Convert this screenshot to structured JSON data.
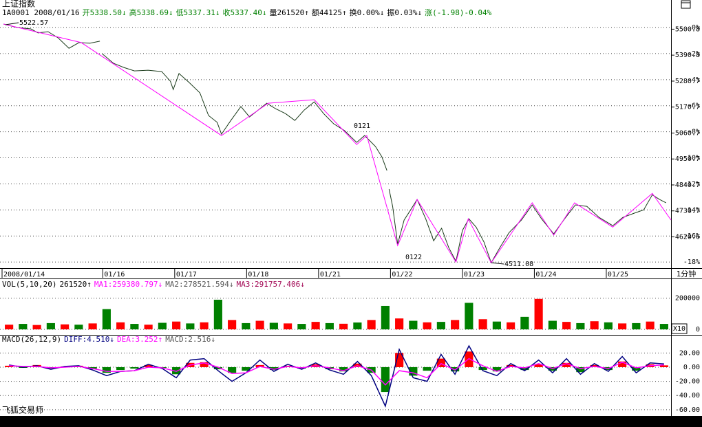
{
  "chart_data": [
    {
      "type": "line",
      "title": "上证指数",
      "header": [
        {
          "text": "1A0001 2008/01/16",
          "color": "#000000"
        },
        {
          "text": "开5338.50↓",
          "color": "#008000"
        },
        {
          "text": "高5338.69↓",
          "color": "#008000"
        },
        {
          "text": "低5337.31↓",
          "color": "#008000"
        },
        {
          "text": "收5337.40↓",
          "color": "#008000"
        },
        {
          "text": "量261520↑",
          "color": "#000000"
        },
        {
          "text": "额44125↑",
          "color": "#000000"
        },
        {
          "text": "换0.00%↓",
          "color": "#000000"
        },
        {
          "text": "振0.03%↓",
          "color": "#000000"
        },
        {
          "text": "涨(-1.98)-0.04%",
          "color": "#008000"
        }
      ],
      "x": [
        -0.38,
        -0.19,
        0.0,
        0.1,
        0.24,
        0.38,
        0.53,
        0.67,
        0.82,
        0.96,
        null,
        0.99,
        1.15,
        1.29,
        1.44,
        1.63,
        1.82,
        1.94,
        1.98,
        2.06,
        2.2,
        2.35,
        2.47,
        2.59,
        2.65,
        2.78,
        2.92,
        3.04,
        3.16,
        3.28,
        3.4,
        3.54,
        3.67,
        3.8,
        3.94,
        4.07,
        4.21,
        4.36,
        4.53,
        4.64,
        4.79,
        4.88,
        4.95,
        null,
        4.98,
        5.03,
        5.1,
        5.19,
        5.28,
        5.37,
        5.49,
        5.6,
        5.71,
        5.81,
        5.91,
        6.0,
        6.09,
        6.19,
        6.3,
        6.4,
        6.52,
        6.65,
        6.82,
        6.97,
        7.1,
        7.27,
        7.42,
        7.57,
        7.73,
        7.9,
        8.09,
        8.23,
        8.39,
        8.52,
        8.64,
        8.74,
        8.83
      ],
      "values": [
        5522.57,
        5508,
        5502,
        5485,
        5490,
        5464,
        5420,
        5444,
        5441,
        5450,
        null,
        5397,
        5356,
        5339,
        5324,
        5327,
        5321,
        5280,
        5245,
        5313,
        5275,
        5231,
        5135,
        5106,
        5056,
        5114,
        5173,
        5129,
        5158,
        5187,
        5164,
        5143,
        5114,
        5158,
        5193,
        5143,
        5100,
        5071,
        5021,
        5050,
        5004,
        4960,
        4902,
        null,
        4823,
        4750,
        4590,
        4692,
        4735,
        4779,
        4697,
        4604,
        4657,
        4575,
        4517,
        4648,
        4697,
        4662,
        4598,
        4511.08,
        4575,
        4639,
        4692,
        4756,
        4697,
        4633,
        4697,
        4756,
        4750,
        4703,
        4668,
        4703,
        4721,
        4735,
        4799,
        4779,
        4765
      ],
      "color": "#1a3a1a",
      "zigzag": {
        "color": "#ff00ff",
        "x": [
          -0.38,
          0.7,
          2.65,
          3.3,
          3.94,
          4.53,
          4.67,
          5.1,
          5.37,
          5.91,
          6.08,
          6.4,
          6.97,
          7.27,
          7.56,
          8.09,
          8.64,
          8.9
        ],
        "values": [
          5522.57,
          5444,
          5050,
          5187,
          5202,
          5012,
          5050,
          4584,
          4779,
          4514,
          4697,
          4511.08,
          4765,
          4628,
          4765,
          4662,
          4805,
          4692
        ]
      },
      "annotations": [
        {
          "text": "5522.57"
        },
        {
          "text": "0121"
        },
        {
          "text": "0122"
        },
        {
          "text": "4511.08"
        }
      ],
      "xlim": [
        -0.4,
        8.9
      ],
      "xticks": [
        {
          "value": -0.4,
          "label": "2008/01/14"
        },
        {
          "value": 1,
          "label": "01/16"
        },
        {
          "value": 2,
          "label": "01/17"
        },
        {
          "value": 3,
          "label": "01/18"
        },
        {
          "value": 4,
          "label": "01/21"
        },
        {
          "value": 5,
          "label": "01/22"
        },
        {
          "value": 6,
          "label": "01/23"
        },
        {
          "value": 7,
          "label": "01/24"
        },
        {
          "value": 8,
          "label": "01/25"
        }
      ],
      "period": "1分钟",
      "ylim": [
        4488,
        5537
      ],
      "yticks": [
        5500.8,
        5390.8,
        5280.7,
        5170.7,
        5060.7,
        4950.7,
        4840.7,
        4730.7,
        4620.6
      ],
      "y2lim": [
        -18.47,
        0.53
      ],
      "y2ticks": [
        {
          "value": 0,
          "label": "0%"
        },
        {
          "value": -2,
          "label": "-2%"
        },
        {
          "value": -4,
          "label": "-4%"
        },
        {
          "value": -6,
          "label": "-6%"
        },
        {
          "value": -8,
          "label": "-8%"
        },
        {
          "value": -10,
          "label": "-10%"
        },
        {
          "value": -12,
          "label": "-12%"
        },
        {
          "value": -14,
          "label": "-14%"
        },
        {
          "value": -16,
          "label": "-16%"
        },
        {
          "value": -18,
          "label": "-18%"
        }
      ],
      "grid": true
    },
    {
      "type": "bar",
      "header": [
        {
          "text": "VOL(5,10,20)",
          "color": "#000000"
        },
        {
          "text": "261520↑",
          "color": "#000000"
        },
        {
          "text": "MA1:259380.797↓",
          "color": "#ff00ff"
        },
        {
          "text": "MA2:278521.594↓",
          "color": "#555555"
        },
        {
          "text": "MA3:291757.406↓",
          "color": "#a00050"
        }
      ],
      "categories": [
        null,
        null,
        null,
        null,
        null,
        null,
        null,
        null,
        null,
        null,
        null,
        null,
        null,
        null,
        null,
        null,
        null,
        null,
        null,
        null,
        null,
        null,
        null,
        null,
        null,
        null,
        null,
        null,
        null,
        null,
        null,
        null,
        null,
        null,
        null,
        null,
        null,
        null,
        null,
        null,
        null,
        null,
        null,
        null,
        null,
        null,
        null,
        null
      ],
      "values": [
        30000,
        35000,
        28000,
        40000,
        32000,
        30000,
        38000,
        130000,
        45000,
        35000,
        30000,
        42000,
        50000,
        38000,
        45000,
        190000,
        60000,
        40000,
        55000,
        42000,
        38000,
        35000,
        48000,
        40000,
        36000,
        44000,
        60000,
        150000,
        70000,
        55000,
        45000,
        48000,
        60000,
        170000,
        65000,
        50000,
        45000,
        80000,
        195000,
        55000,
        48000,
        40000,
        52000,
        45000,
        38000,
        40000,
        50000,
        35000
      ],
      "colors": [
        "#ff0000",
        "#008000"
      ],
      "scale_note": "X10",
      "ylim": [
        0,
        260000
      ],
      "yticks": [
        0,
        200000
      ],
      "grid": true
    },
    {
      "type": "bar",
      "header": [
        {
          "text": "MACD(26,12,9)",
          "color": "#000000"
        },
        {
          "text": "DIFF:4.510↓",
          "color": "#000080"
        },
        {
          "text": "DEA:3.252↑",
          "color": "#ff00ff"
        },
        {
          "text": "MACD:2.516↓",
          "color": "#555555"
        }
      ],
      "categories": [
        null,
        null,
        null,
        null,
        null,
        null,
        null,
        null,
        null,
        null,
        null,
        null,
        null,
        null,
        null,
        null,
        null,
        null,
        null,
        null,
        null,
        null,
        null,
        null,
        null,
        null,
        null,
        null,
        null,
        null,
        null,
        null,
        null,
        null,
        null,
        null,
        null,
        null,
        null,
        null,
        null,
        null,
        null,
        null,
        null,
        null,
        null,
        null
      ],
      "values": [
        2,
        -1,
        3,
        -2,
        1,
        2,
        -3,
        -8,
        -4,
        -2,
        3,
        -1,
        -10,
        6,
        7,
        -3,
        -8,
        -5,
        3,
        -4,
        2,
        -2,
        4,
        -3,
        -6,
        5,
        -8,
        -35,
        20,
        -12,
        -5,
        12,
        -6,
        22,
        -4,
        -6,
        3,
        -4,
        4,
        -5,
        6,
        -7,
        3,
        -4,
        8,
        -5,
        4,
        2.516
      ],
      "colors": [
        "#ff0000",
        "#008000"
      ],
      "lines": [
        {
          "color": "#000080",
          "values": [
            3,
            0,
            2,
            -3,
            1,
            2,
            -4,
            -12,
            -6,
            -5,
            4,
            -2,
            -15,
            10,
            12,
            -5,
            -20,
            -8,
            10,
            -6,
            4,
            -3,
            6,
            -4,
            -10,
            8,
            -12,
            -55,
            25,
            -15,
            -20,
            18,
            -10,
            30,
            -5,
            -12,
            5,
            -5,
            10,
            -8,
            12,
            -10,
            5,
            -6,
            15,
            -8,
            6,
            4.51
          ]
        },
        {
          "color": "#ff00ff",
          "values": [
            2,
            1,
            1,
            -1,
            0,
            1,
            -2,
            -6,
            -6,
            -5,
            0,
            -1,
            -6,
            3,
            6,
            0,
            -9,
            -8,
            1,
            -3,
            1,
            -1,
            2,
            -1,
            -5,
            2,
            -4,
            -25,
            -5,
            -8,
            -15,
            5,
            -4,
            12,
            2,
            -6,
            1,
            -1,
            5,
            -2,
            5,
            -2,
            1,
            -2,
            7,
            -1,
            2,
            3.252
          ]
        }
      ],
      "ylim": [
        -64,
        30
      ],
      "yticks": [
        {
          "value": 20,
          "label": "20.00"
        },
        {
          "value": 0,
          "label": "0.00"
        },
        {
          "value": -20,
          "label": "-20.00"
        },
        {
          "value": -40,
          "label": "-40.00"
        },
        {
          "value": -60,
          "label": "-60.00"
        }
      ],
      "grid": true,
      "footer": "飞狐交易师"
    }
  ]
}
